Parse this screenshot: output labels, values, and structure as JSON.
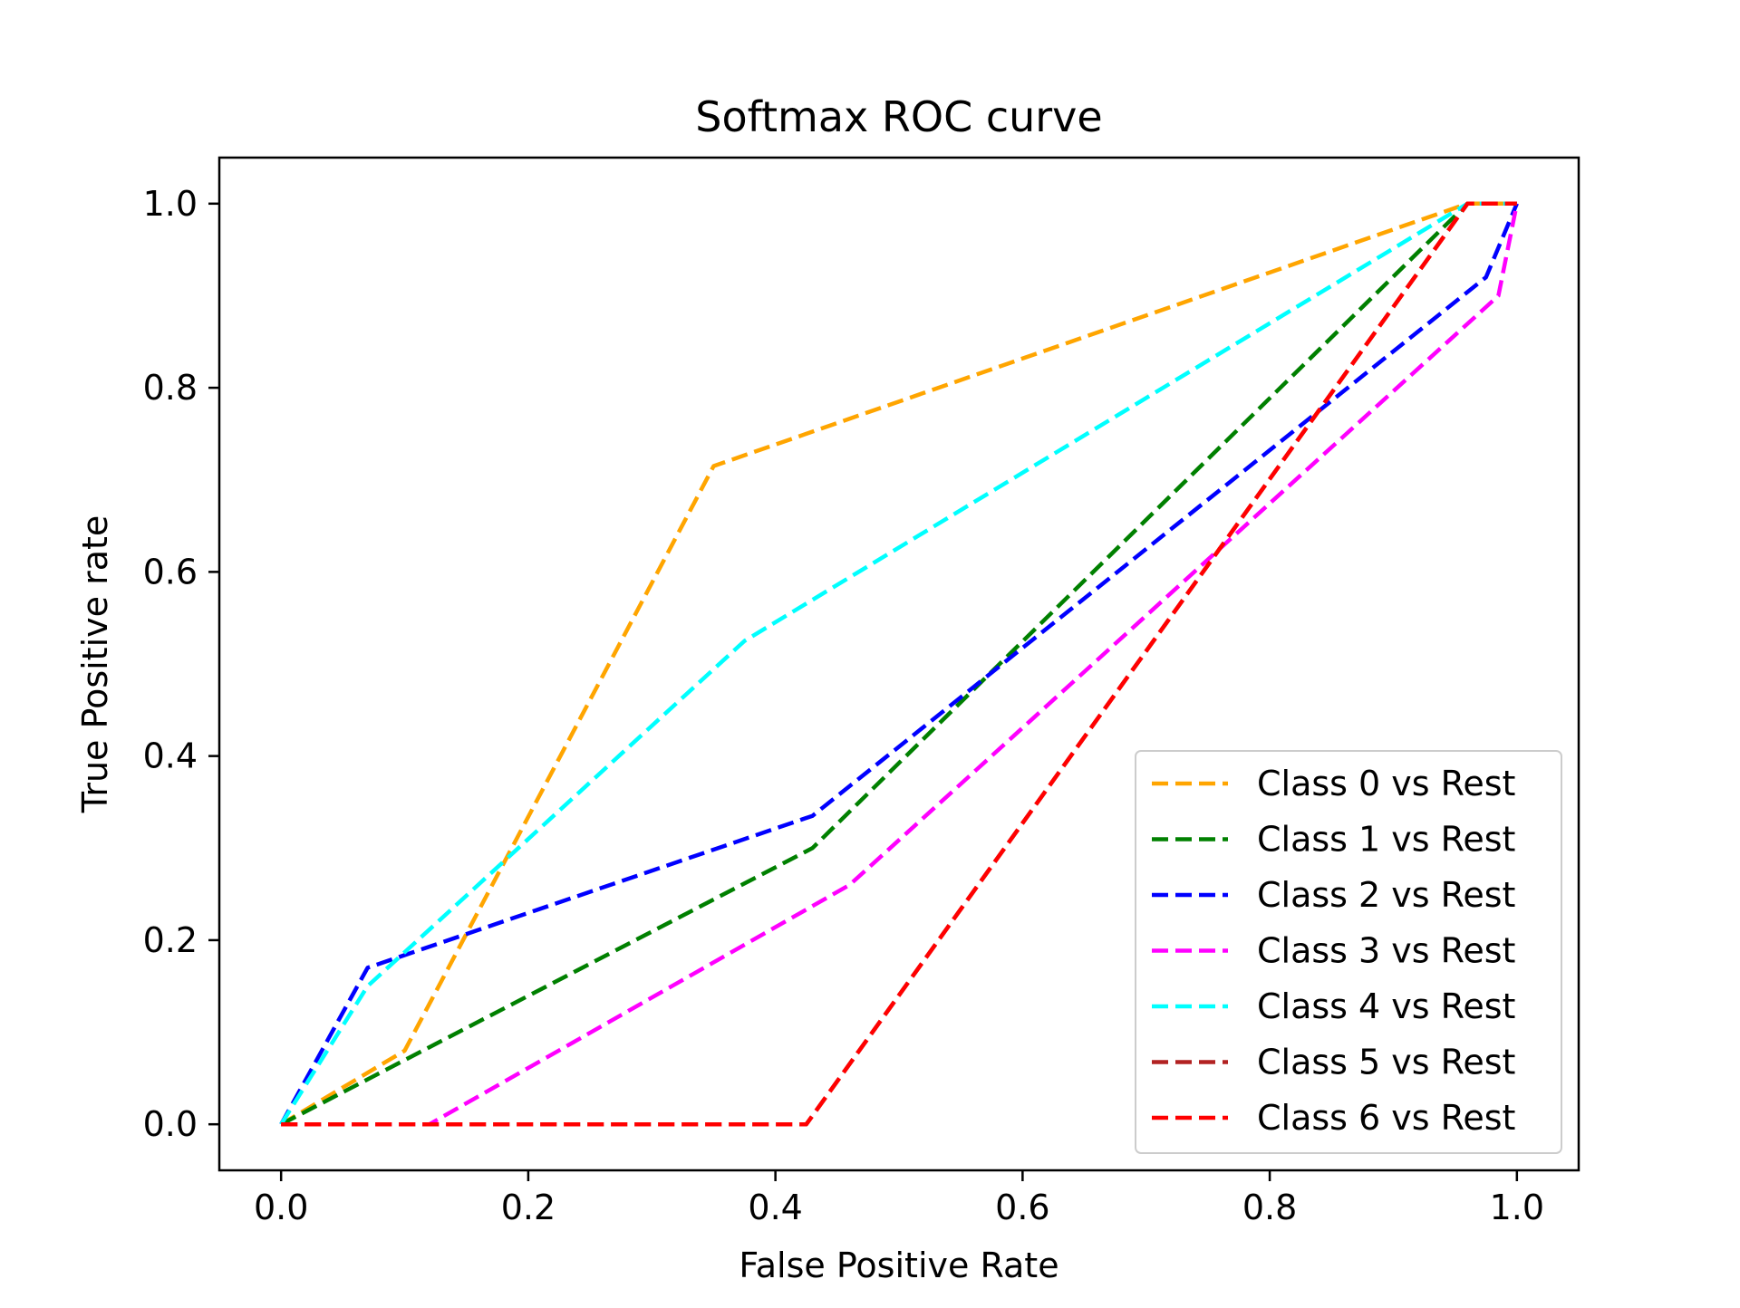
{
  "chart_data": {
    "type": "line",
    "title": "Softmax ROC curve",
    "xlabel": "False Positive Rate",
    "ylabel": "True Positive rate",
    "xlim": [
      -0.05,
      1.05
    ],
    "ylim": [
      -0.05,
      1.05
    ],
    "xticks": [
      0.0,
      0.2,
      0.4,
      0.6,
      0.8,
      1.0
    ],
    "xtick_labels": [
      "0.0",
      "0.2",
      "0.4",
      "0.6",
      "0.8",
      "1.0"
    ],
    "yticks": [
      0.0,
      0.2,
      0.4,
      0.6,
      0.8,
      1.0
    ],
    "ytick_labels": [
      "0.0",
      "0.2",
      "0.4",
      "0.6",
      "0.8",
      "1.0"
    ],
    "grid": false,
    "legend_position": "lower-right",
    "line_style": "dashed",
    "series": [
      {
        "name": "Class 0 vs Rest",
        "color": "#ffa500",
        "x": [
          0.0,
          0.1,
          0.35,
          0.96,
          1.0
        ],
        "y": [
          0.0,
          0.08,
          0.715,
          1.0,
          1.0
        ]
      },
      {
        "name": "Class 1 vs Rest",
        "color": "#008000",
        "x": [
          0.0,
          0.43,
          0.96,
          1.0
        ],
        "y": [
          0.0,
          0.3,
          1.0,
          1.0
        ]
      },
      {
        "name": "Class 2 vs Rest",
        "color": "#0000ff",
        "x": [
          0.0,
          0.07,
          0.43,
          0.975,
          1.0
        ],
        "y": [
          0.0,
          0.17,
          0.335,
          0.92,
          1.0
        ]
      },
      {
        "name": "Class 3 vs Rest",
        "color": "#ff00ff",
        "x": [
          0.0,
          0.12,
          0.46,
          0.985,
          1.0
        ],
        "y": [
          0.0,
          0.0,
          0.26,
          0.9,
          1.0
        ]
      },
      {
        "name": "Class 4 vs Rest",
        "color": "#00ffff",
        "x": [
          0.0,
          0.07,
          0.375,
          0.96,
          1.0
        ],
        "y": [
          0.0,
          0.15,
          0.525,
          1.0,
          1.0
        ]
      },
      {
        "name": "Class 5 vs Rest",
        "color": "#b22222",
        "x": [
          0.0,
          0.425,
          0.96,
          1.0
        ],
        "y": [
          0.0,
          0.0,
          1.0,
          1.0
        ]
      },
      {
        "name": "Class 6 vs Rest",
        "color": "#ff0000",
        "x": [
          0.0,
          0.425,
          0.96,
          1.0
        ],
        "y": [
          0.0,
          0.0,
          1.0,
          1.0
        ]
      }
    ]
  }
}
